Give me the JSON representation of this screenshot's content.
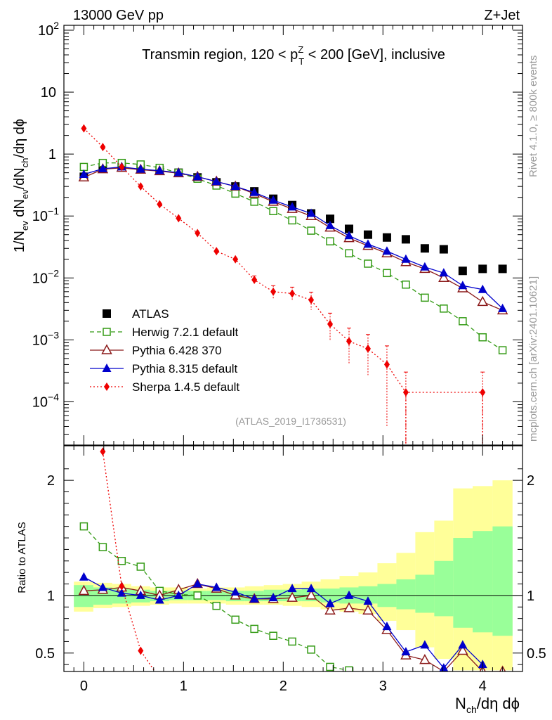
{
  "header": {
    "left": "13000 GeV pp",
    "right": "Z+Jet"
  },
  "side_labels": {
    "rivet": "Rivet 4.1.0, ≥ 800k events",
    "mcplots": "mcplots.cern.ch [arXiv:2401.10621]"
  },
  "chart_data": {
    "type": "line",
    "title_parts": [
      "Transmin region, 120 < p",
      "Z",
      "T",
      " < 200 [GeV], inclusive"
    ],
    "analysis_id": "(ATLAS_2019_I1736531)",
    "xlabel_parts": [
      "N",
      "ch",
      "/dη dϕ"
    ],
    "ylabel_parts": [
      "1/N",
      "ev",
      " dN",
      "ev",
      "/dN",
      "ch",
      "/dη dϕ"
    ],
    "ratio_ylabel": "Ratio to ATLAS",
    "xlim": [
      -0.2,
      4.4
    ],
    "ylim": [
      2e-05,
      120
    ],
    "ylog": true,
    "ratio_ylim": [
      0.34,
      2.3
    ],
    "x_ticks": [
      {
        "v": 0,
        "label": "0"
      },
      {
        "v": 1,
        "label": "1"
      },
      {
        "v": 2,
        "label": "2"
      },
      {
        "v": 3,
        "label": "3"
      },
      {
        "v": 4,
        "label": "4"
      }
    ],
    "y_ticks": [
      {
        "v": 100,
        "label": "10",
        "sup": "2"
      },
      {
        "v": 10,
        "label": "10",
        "sup": ""
      },
      {
        "v": 1,
        "label": "1",
        "sup": ""
      },
      {
        "v": 0.1,
        "label": "10",
        "sup": "−1"
      },
      {
        "v": 0.01,
        "label": "10",
        "sup": "−2"
      },
      {
        "v": 0.001,
        "label": "10",
        "sup": "−3"
      },
      {
        "v": 0.0001,
        "label": "10",
        "sup": "−4"
      }
    ],
    "ratio_ticks": [
      {
        "v": 2,
        "label": "2"
      },
      {
        "v": 1,
        "label": "1"
      },
      {
        "v": 0.5,
        "label": "0.5"
      }
    ],
    "x": [
      0,
      0.19,
      0.38,
      0.57,
      0.76,
      0.95,
      1.14,
      1.33,
      1.52,
      1.71,
      1.9,
      2.09,
      2.28,
      2.47,
      2.66,
      2.85,
      3.04,
      3.23,
      3.42,
      3.61,
      3.8,
      4.0,
      4.2
    ],
    "band_edges": [
      -0.1,
      0.095,
      0.285,
      0.475,
      0.665,
      0.855,
      1.045,
      1.235,
      1.425,
      1.615,
      1.805,
      1.995,
      2.185,
      2.375,
      2.565,
      2.755,
      2.945,
      3.135,
      3.325,
      3.515,
      3.705,
      3.9,
      4.1,
      4.3
    ],
    "band_green": [
      [
        0.9,
        1.09
      ],
      [
        0.92,
        1.07
      ],
      [
        0.93,
        1.06
      ],
      [
        0.94,
        1.05
      ],
      [
        0.95,
        1.04
      ],
      [
        0.96,
        1.04
      ],
      [
        0.96,
        1.04
      ],
      [
        0.96,
        1.04
      ],
      [
        0.95,
        1.04
      ],
      [
        0.95,
        1.04
      ],
      [
        0.95,
        1.05
      ],
      [
        0.95,
        1.05
      ],
      [
        0.95,
        1.06
      ],
      [
        0.94,
        1.06
      ],
      [
        0.93,
        1.07
      ],
      [
        0.93,
        1.08
      ],
      [
        0.9,
        1.1
      ],
      [
        0.88,
        1.14
      ],
      [
        0.85,
        1.18
      ],
      [
        0.82,
        1.3
      ],
      [
        0.72,
        1.5
      ],
      [
        0.68,
        1.56
      ],
      [
        0.65,
        1.6
      ]
    ],
    "band_yellow": [
      [
        0.86,
        1.12
      ],
      [
        0.89,
        1.11
      ],
      [
        0.9,
        1.1
      ],
      [
        0.91,
        1.08
      ],
      [
        0.92,
        1.07
      ],
      [
        0.93,
        1.07
      ],
      [
        0.93,
        1.06
      ],
      [
        0.93,
        1.07
      ],
      [
        0.92,
        1.07
      ],
      [
        0.92,
        1.08
      ],
      [
        0.92,
        1.09
      ],
      [
        0.91,
        1.1
      ],
      [
        0.9,
        1.12
      ],
      [
        0.88,
        1.14
      ],
      [
        0.86,
        1.17
      ],
      [
        0.84,
        1.2
      ],
      [
        0.78,
        1.28
      ],
      [
        0.7,
        1.37
      ],
      [
        0.55,
        1.55
      ],
      [
        0.45,
        1.65
      ],
      [
        0.35,
        1.93
      ],
      [
        0.35,
        1.95
      ],
      [
        0.35,
        2.0
      ]
    ],
    "series": [
      {
        "name": "ATLAS",
        "style": "data",
        "color": "#000000",
        "values": [
          0.43,
          0.58,
          0.62,
          0.58,
          0.55,
          0.5,
          0.42,
          0.35,
          0.3,
          0.25,
          0.19,
          0.15,
          0.11,
          0.09,
          0.062,
          0.05,
          0.045,
          0.042,
          0.03,
          0.029,
          0.013,
          0.014,
          0.014
        ],
        "ratio": null
      },
      {
        "name": "Herwig 7.2.1 default",
        "style": "dashed",
        "marker": "open-square",
        "color": "#339a14",
        "values": [
          0.62,
          0.72,
          0.72,
          0.68,
          0.6,
          0.5,
          0.4,
          0.31,
          0.23,
          0.17,
          0.12,
          0.085,
          0.058,
          0.039,
          0.025,
          0.017,
          0.012,
          0.0078,
          0.0048,
          0.0032,
          0.002,
          0.0011,
          0.00068
        ],
        "ratio": [
          1.6,
          1.42,
          1.3,
          1.25,
          1.04,
          1.01,
          1.0,
          0.91,
          0.79,
          0.71,
          0.65,
          0.6,
          0.53,
          0.38,
          0.35,
          null,
          null,
          null,
          null,
          null,
          null,
          null,
          null
        ]
      },
      {
        "name": "Pythia 6.428 370",
        "style": "solid",
        "marker": "open-triangle",
        "color": "#8b1a1a",
        "values": [
          0.42,
          0.57,
          0.6,
          0.56,
          0.53,
          0.49,
          0.43,
          0.36,
          0.3,
          0.23,
          0.17,
          0.13,
          0.1,
          0.065,
          0.044,
          0.033,
          0.025,
          0.018,
          0.014,
          0.01,
          0.0068,
          0.0041,
          0.003
        ],
        "ratio": [
          1.04,
          1.05,
          1.07,
          1.04,
          1.0,
          1.05,
          1.1,
          1.06,
          1.0,
          0.97,
          0.97,
          0.98,
          1.0,
          0.87,
          0.89,
          0.87,
          0.7,
          0.48,
          0.44,
          0.34,
          0.52,
          0.34,
          0.34
        ]
      },
      {
        "name": "Pythia 8.315 default",
        "style": "solid",
        "marker": "filled-triangle",
        "color": "#0000cc",
        "values": [
          0.47,
          0.58,
          0.62,
          0.57,
          0.54,
          0.5,
          0.43,
          0.36,
          0.3,
          0.24,
          0.18,
          0.14,
          0.11,
          0.07,
          0.048,
          0.035,
          0.027,
          0.02,
          0.015,
          0.012,
          0.0075,
          0.0065,
          0.0032
        ],
        "ratio": [
          1.16,
          1.07,
          1.02,
          1.0,
          0.96,
          1.0,
          1.1,
          1.07,
          1.03,
          0.97,
          0.98,
          1.06,
          1.06,
          0.93,
          1.0,
          0.95,
          0.73,
          0.51,
          0.57,
          0.37,
          0.57,
          0.4,
          null
        ]
      },
      {
        "name": "Sherpa 1.4.5 default",
        "style": "dotted",
        "marker": "filled-diamond",
        "color": "#ee0000",
        "values": [
          2.6,
          1.3,
          0.62,
          0.3,
          0.155,
          0.092,
          0.053,
          0.027,
          0.02,
          0.0093,
          0.006,
          0.0056,
          0.0044,
          0.0018,
          0.00095,
          0.00072,
          0.0004,
          0.000142,
          null,
          null,
          null,
          0.000142,
          null
        ],
        "errors_high": [
          0,
          0,
          0,
          0,
          0,
          0,
          0,
          0,
          0,
          0.0015,
          0.0015,
          0.0015,
          0.0015,
          0.0009,
          0.0006,
          0.0005,
          0.0004,
          0.00016,
          0,
          0,
          0,
          0.00016,
          0
        ],
        "ratio": [
          6.0,
          2.25,
          1.08,
          0.52,
          0.28,
          null,
          null,
          null,
          null,
          null,
          null,
          null,
          null,
          null,
          null,
          null,
          null,
          null,
          null,
          null,
          null,
          null,
          null
        ]
      }
    ]
  }
}
